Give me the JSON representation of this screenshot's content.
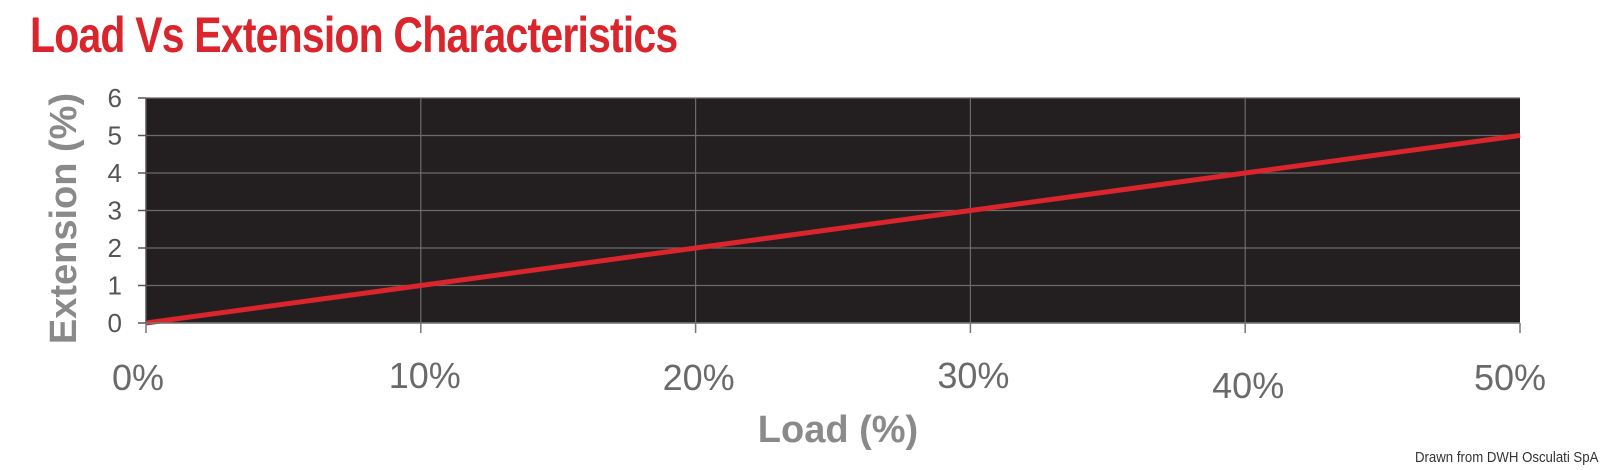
{
  "chart_data": {
    "type": "line",
    "title": "Load Vs Extension Characteristics",
    "xlabel": "Load (%)",
    "ylabel": "Extension (%)",
    "x_tick_labels": [
      "0%",
      "10%",
      "20%",
      "30%",
      "40%",
      "50%"
    ],
    "y_tick_labels": [
      "0",
      "1",
      "2",
      "3",
      "4",
      "5",
      "6"
    ],
    "xlim": [
      0,
      50
    ],
    "ylim": [
      0,
      6
    ],
    "grid": true,
    "legend": "none",
    "series": [
      {
        "x": [
          0,
          10,
          20,
          30,
          40,
          50
        ],
        "y": [
          0,
          1,
          2,
          3,
          4,
          5
        ],
        "color": "#d9252b"
      }
    ],
    "plot_background": "#231f20",
    "gridline_color": "#6b6b6b"
  },
  "credit": "Drawn from DWH Osculati SpA"
}
